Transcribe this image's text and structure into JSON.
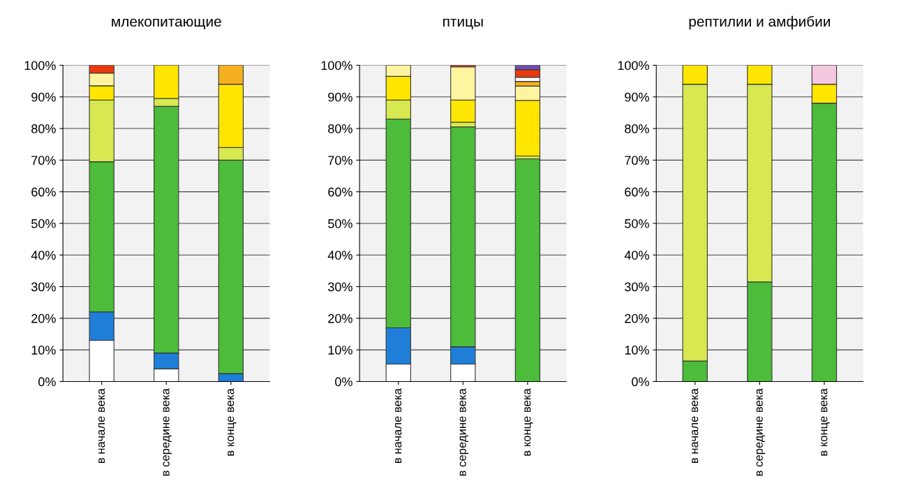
{
  "chart_data": [
    {
      "type": "bar",
      "stacked": true,
      "title": "млекопитающие",
      "categories": [
        "в начале века",
        "в середине века",
        "в конце века"
      ],
      "ylim": [
        0,
        100
      ],
      "yticks": [
        {
          "value": 0,
          "label": "0%"
        },
        {
          "value": 10,
          "label": "10%"
        },
        {
          "value": 20,
          "label": "20%"
        },
        {
          "value": 30,
          "label": "30%"
        },
        {
          "value": 40,
          "label": "40%"
        },
        {
          "value": 50,
          "label": "50%"
        },
        {
          "value": 60,
          "label": "60%"
        },
        {
          "value": 70,
          "label": "70%"
        },
        {
          "value": 80,
          "label": "80%"
        },
        {
          "value": 90,
          "label": "90%"
        },
        {
          "value": 100,
          "label": "100%"
        }
      ],
      "grid": "y",
      "legend": false,
      "series": [
        {
          "color": "#ffffff",
          "values": [
            13,
            4,
            0
          ]
        },
        {
          "color": "#1f7fd8",
          "values": [
            9,
            5,
            2.5
          ]
        },
        {
          "color": "#4cbc3a",
          "values": [
            47.5,
            78,
            67.5
          ]
        },
        {
          "color": "#d8e850",
          "values": [
            19.5,
            2.5,
            4
          ]
        },
        {
          "color": "#ffe600",
          "values": [
            4.5,
            10.5,
            20
          ]
        },
        {
          "color": "#fff5a0",
          "values": [
            4,
            0,
            0
          ]
        },
        {
          "color": "#f5b020",
          "values": [
            0,
            0,
            6
          ]
        },
        {
          "color": "#e83a10",
          "values": [
            2.5,
            0,
            0
          ]
        }
      ]
    },
    {
      "type": "bar",
      "stacked": true,
      "title": "птицы",
      "categories": [
        "в начале века",
        "в середине века",
        "в конце века"
      ],
      "ylim": [
        0,
        100
      ],
      "yticks": [
        {
          "value": 0,
          "label": "0%"
        },
        {
          "value": 10,
          "label": "10%"
        },
        {
          "value": 20,
          "label": "20%"
        },
        {
          "value": 30,
          "label": "30%"
        },
        {
          "value": 40,
          "label": "40%"
        },
        {
          "value": 50,
          "label": "50%"
        },
        {
          "value": 60,
          "label": "60%"
        },
        {
          "value": 70,
          "label": "70%"
        },
        {
          "value": 80,
          "label": "80%"
        },
        {
          "value": 90,
          "label": "90%"
        },
        {
          "value": 100,
          "label": "100%"
        }
      ],
      "grid": "y",
      "legend": false,
      "series": [
        {
          "color": "#ffffff",
          "values": [
            5.5,
            5.5,
            0
          ]
        },
        {
          "color": "#1f7fd8",
          "values": [
            11.5,
            5.5,
            0
          ]
        },
        {
          "color": "#4cbc3a",
          "values": [
            66,
            69.5,
            70.4
          ]
        },
        {
          "color": "#d8e850",
          "values": [
            6,
            1.5,
            0.9
          ]
        },
        {
          "color": "#ffe600",
          "values": [
            7.5,
            7,
            17.6
          ]
        },
        {
          "color": "#fff5a0",
          "values": [
            3.5,
            10.5,
            4.5
          ]
        },
        {
          "color": "#f5b020",
          "values": [
            0,
            0,
            1.5
          ]
        },
        {
          "color": "#ffffff",
          "values": [
            0,
            0,
            1.3
          ]
        },
        {
          "color": "#e83a10",
          "values": [
            0,
            0.5,
            2.4
          ]
        },
        {
          "color": "#7050b0",
          "values": [
            0,
            0,
            1.4
          ]
        }
      ]
    },
    {
      "type": "bar",
      "stacked": true,
      "title": "рептилии и амфибии",
      "categories": [
        "в начале века",
        "в середине века",
        "в конце века"
      ],
      "ylim": [
        0,
        100
      ],
      "yticks": [
        {
          "value": 0,
          "label": "0%"
        },
        {
          "value": 10,
          "label": "10%"
        },
        {
          "value": 20,
          "label": "20%"
        },
        {
          "value": 30,
          "label": "30%"
        },
        {
          "value": 40,
          "label": "40%"
        },
        {
          "value": 50,
          "label": "50%"
        },
        {
          "value": 60,
          "label": "60%"
        },
        {
          "value": 70,
          "label": "70%"
        },
        {
          "value": 80,
          "label": "80%"
        },
        {
          "value": 90,
          "label": "90%"
        },
        {
          "value": 100,
          "label": "100%"
        }
      ],
      "grid": "y",
      "legend": false,
      "series": [
        {
          "color": "#4cbc3a",
          "values": [
            6.5,
            31.5,
            88
          ]
        },
        {
          "color": "#d8e850",
          "values": [
            87.5,
            62.5,
            0
          ]
        },
        {
          "color": "#ffe600",
          "values": [
            6,
            6,
            6
          ]
        },
        {
          "color": "#f5c8e0",
          "values": [
            0,
            0,
            6
          ]
        }
      ]
    }
  ]
}
